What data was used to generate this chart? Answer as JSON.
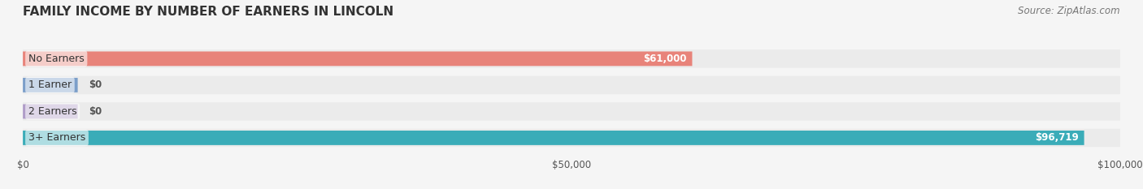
{
  "title": "FAMILY INCOME BY NUMBER OF EARNERS IN LINCOLN",
  "source": "Source: ZipAtlas.com",
  "categories": [
    "No Earners",
    "1 Earner",
    "2 Earners",
    "3+ Earners"
  ],
  "values": [
    61000,
    0,
    0,
    96719
  ],
  "bar_colors": [
    "#E8837A",
    "#7B9EC9",
    "#B09CC8",
    "#3AACB8"
  ],
  "label_colors": [
    "#E8837A",
    "#7B9EC9",
    "#B09CC8",
    "#3AACB8"
  ],
  "value_labels": [
    "$61,000",
    "$0",
    "$0",
    "$96,719"
  ],
  "xlim": [
    0,
    100000
  ],
  "xtick_values": [
    0,
    50000,
    100000
  ],
  "xtick_labels": [
    "$0",
    "$50,000",
    "$100,000"
  ],
  "bar_height": 0.55,
  "background_color": "#f5f5f5",
  "bar_bg_color": "#e8e8e8",
  "title_fontsize": 11,
  "source_fontsize": 8.5,
  "label_fontsize": 9,
  "value_fontsize": 8.5,
  "tick_fontsize": 8.5
}
